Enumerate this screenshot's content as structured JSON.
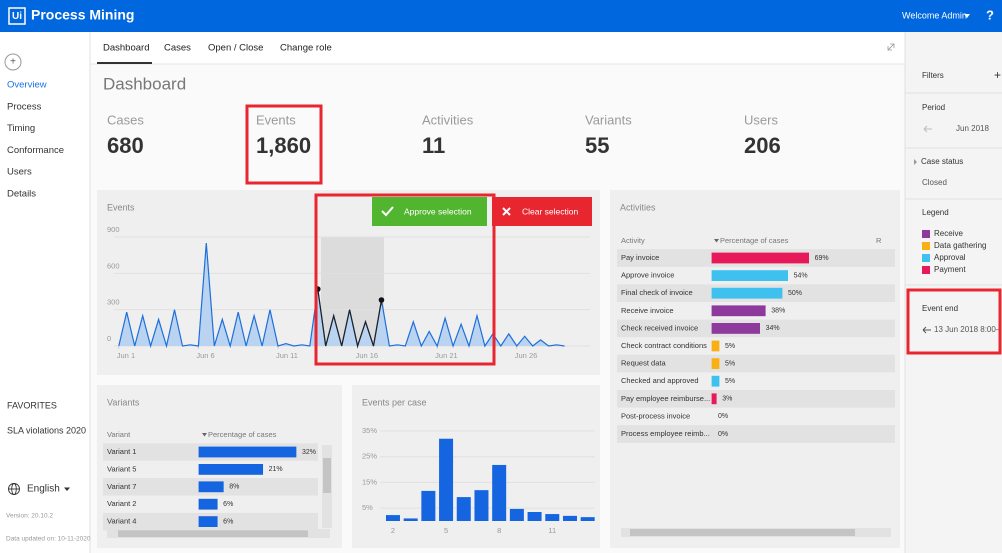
{
  "header": {
    "logo": "Ui",
    "title": "Process Mining",
    "welcome": "Welcome Admin",
    "help": "?"
  },
  "sidebar": {
    "add": "+",
    "nav": [
      "Overview",
      "Process",
      "Timing",
      "Conformance",
      "Users",
      "Details"
    ],
    "favorites_title": "FAVORITES",
    "favorites": [
      "SLA violations 2020"
    ],
    "language": "English",
    "version": "Version: 20.10.2",
    "updated": "Data updated on: 10-11-2020"
  },
  "tabs": [
    "Dashboard",
    "Cases",
    "Open / Close",
    "Change role"
  ],
  "page_title": "Dashboard",
  "kpis": [
    {
      "label": "Cases",
      "value": "680"
    },
    {
      "label": "Events",
      "value": "1,860"
    },
    {
      "label": "Activities",
      "value": "11"
    },
    {
      "label": "Variants",
      "value": "55"
    },
    {
      "label": "Users",
      "value": "206"
    }
  ],
  "filters": {
    "title": "Filters",
    "add": "+",
    "period_title": "Period",
    "period_value": "Jun 2018",
    "case_status_title": "Case status",
    "case_status_value": "Closed",
    "legend_title": "Legend",
    "legend": [
      {
        "name": "Receive",
        "color": "#8e3a9d"
      },
      {
        "name": "Data gathering",
        "color": "#f9b015"
      },
      {
        "name": "Approval",
        "color": "#3ec1ee"
      },
      {
        "name": "Payment",
        "color": "#e8195a"
      }
    ],
    "event_end_title": "Event end",
    "event_end_value": "13 Jun 2018 8:00–"
  },
  "chart_data": [
    {
      "type": "line",
      "title": "Events",
      "buttons": [
        "Approve selection",
        "Clear selection"
      ],
      "x": [
        1,
        1.5,
        2,
        2.5,
        3,
        3.5,
        4,
        4.5,
        5,
        5.5,
        6,
        6.5,
        7,
        7.5,
        8,
        8.5,
        9,
        9.5,
        10,
        10.5,
        11,
        11.5,
        12,
        12.5,
        13,
        13.5,
        14,
        14.5,
        15,
        15.5,
        16,
        16.5,
        17,
        17.5,
        18,
        18.5,
        19,
        19.5,
        20,
        20.5,
        21,
        21.5,
        22,
        22.5,
        23,
        23.5,
        24,
        24.5,
        25,
        25.5,
        26,
        26.5,
        27,
        27.5,
        28,
        28.5,
        29
      ],
      "values": [
        0,
        280,
        0,
        250,
        0,
        220,
        0,
        300,
        0,
        10,
        0,
        850,
        0,
        220,
        0,
        280,
        0,
        250,
        0,
        300,
        0,
        20,
        0,
        10,
        0,
        470,
        0,
        250,
        0,
        300,
        0,
        200,
        0,
        380,
        0,
        10,
        0,
        200,
        0,
        120,
        0,
        230,
        0,
        180,
        0,
        250,
        0,
        100,
        0,
        100,
        0,
        80,
        0,
        50,
        0,
        10,
        0
      ],
      "color": "#1e6fd9",
      "area_color": "#b9d3f1",
      "xlim": [
        0.7,
        30.6
      ],
      "ylim": [
        0,
        950
      ],
      "xticks": [
        {
          "value": 1,
          "label": "Jun 1"
        },
        {
          "value": 6,
          "label": "Jun 6"
        },
        {
          "value": 11,
          "label": "Jun 11"
        },
        {
          "value": 16,
          "label": "Jun 16"
        },
        {
          "value": 21,
          "label": "Jun 21"
        },
        {
          "value": 26,
          "label": "Jun 26"
        }
      ],
      "yticks": [
        0,
        300,
        600,
        900
      ],
      "grid": true
    },
    {
      "type": "bar",
      "orientation": "horizontal",
      "title": "Activities",
      "columns": [
        "Activity",
        "Percentage of cases",
        "R"
      ],
      "categories": [
        "Pay invoice",
        "Approve invoice",
        "Final check of invoice",
        "Receive invoice",
        "Check received invoice",
        "Check contract conditions",
        "Request data",
        "Checked and approved",
        "Pay employee reimburse...",
        "Post-process invoice",
        "Process employee reimb..."
      ],
      "values": [
        69,
        54,
        50,
        38,
        34,
        5,
        5,
        5,
        3,
        0,
        0
      ],
      "value_labels": [
        "69%",
        "54%",
        "50%",
        "38%",
        "34%",
        "5%",
        "5%",
        "5%",
        "3%",
        "0%",
        "0%"
      ],
      "colors": [
        "#e8195a",
        "#3ec1ee",
        "#3ec1ee",
        "#8e3a9d",
        "#8e3a9d",
        "#f9b015",
        "#f9b015",
        "#3ec1ee",
        "#e8195a",
        "#bbbbbb",
        "#bbbbbb"
      ]
    },
    {
      "type": "bar",
      "orientation": "horizontal",
      "title": "Variants",
      "columns": [
        "Variant",
        "Percentage of cases"
      ],
      "categories": [
        "Variant 1",
        "Variant 5",
        "Variant 7",
        "Variant 2",
        "Variant 4"
      ],
      "values": [
        32,
        21,
        8,
        6,
        6
      ],
      "value_labels": [
        "32%",
        "21%",
        "8%",
        "6%",
        "6%"
      ],
      "color": "#1565e0"
    },
    {
      "type": "bar",
      "title": "Events per case",
      "x": [
        2,
        3,
        4,
        5,
        6,
        7,
        8,
        9,
        10,
        11,
        12,
        13
      ],
      "values": [
        2.3,
        1,
        11.7,
        32,
        9.3,
        12,
        21.8,
        4.7,
        3.5,
        2.7,
        2,
        1.5
      ],
      "color": "#1565e0",
      "xlim": [
        1.2,
        13.6
      ],
      "ylim": [
        0,
        38
      ],
      "xticks": [
        2,
        5,
        8,
        11
      ],
      "yticks": [
        {
          "value": 5,
          "label": "5%"
        },
        {
          "value": 15,
          "label": "15%"
        },
        {
          "value": 25,
          "label": "25%"
        },
        {
          "value": 35,
          "label": "35%"
        }
      ],
      "grid": true
    }
  ]
}
